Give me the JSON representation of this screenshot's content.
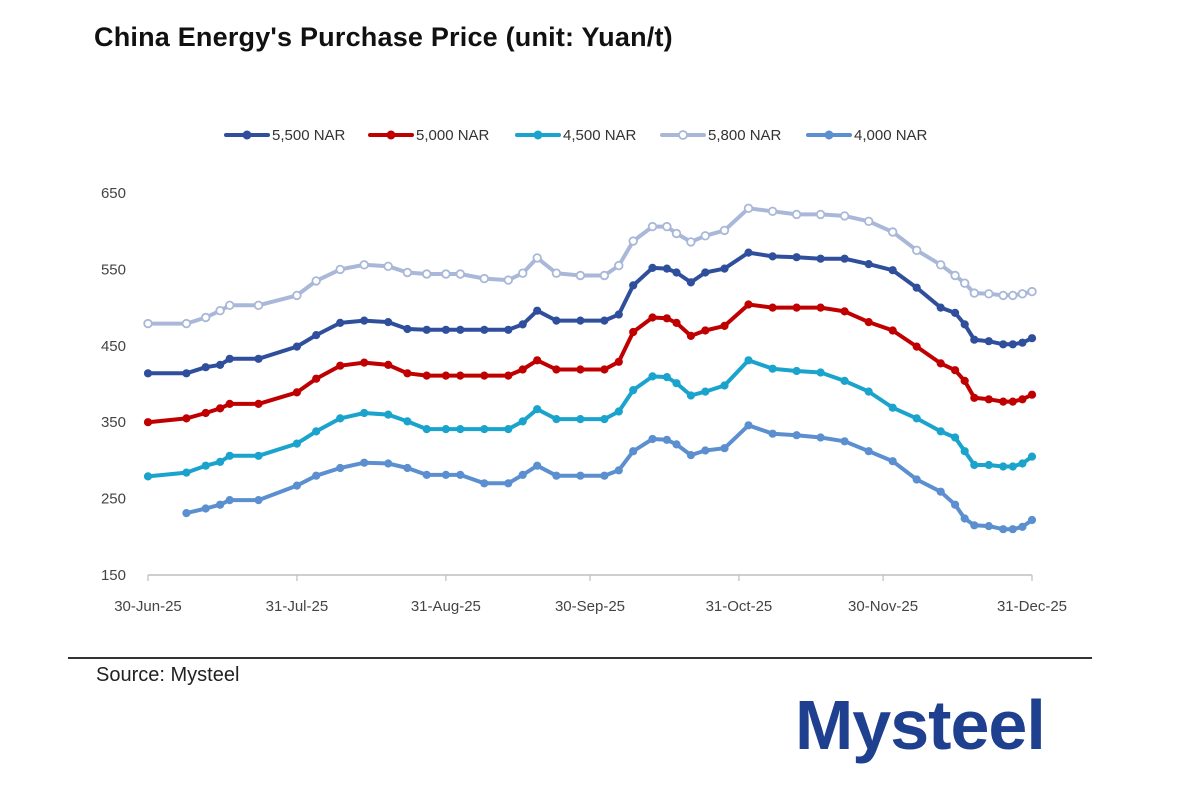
{
  "title": "China Energy's Purchase Price (unit: Yuan/t)",
  "source": "Source: Mysteel",
  "logo_text": "Mysteel",
  "colors": {
    "brand": "#1f3f8f"
  },
  "chart_data": {
    "type": "line",
    "title": "China Energy's Purchase Price (unit: Yuan/t)",
    "xlabel": "",
    "ylabel": "",
    "ylim": [
      150,
      650
    ],
    "yticks": [
      150,
      250,
      350,
      450,
      550,
      650
    ],
    "xlim": [
      0,
      184
    ],
    "xticks": [
      {
        "label": "30-Jun-25",
        "day": 0
      },
      {
        "label": "31-Jul-25",
        "day": 31
      },
      {
        "label": "31-Aug-25",
        "day": 62
      },
      {
        "label": "30-Sep-25",
        "day": 92
      },
      {
        "label": "31-Oct-25",
        "day": 123
      },
      {
        "label": "30-Nov-25",
        "day": 153
      },
      {
        "label": "31-Dec-25",
        "day": 184
      }
    ],
    "grid": false,
    "legend_position": "top",
    "series": [
      {
        "name": "5,500 NAR",
        "color": "#2f4f9c",
        "marker": "filled",
        "x": [
          0,
          8,
          12,
          15,
          17,
          23,
          31,
          35,
          40,
          45,
          50,
          54,
          58,
          62,
          65,
          70,
          75,
          78,
          81,
          85,
          90,
          95,
          98,
          101,
          105,
          108,
          110,
          113,
          116,
          120,
          125,
          130,
          135,
          140,
          145,
          150,
          155,
          160,
          165,
          168,
          170,
          172,
          175,
          178,
          180,
          182,
          184
        ],
        "y": [
          414,
          414,
          422,
          425,
          433,
          433,
          449,
          464,
          480,
          483,
          481,
          472,
          471,
          471,
          471,
          471,
          471,
          478,
          496,
          483,
          483,
          483,
          491,
          529,
          552,
          551,
          546,
          533,
          546,
          551,
          572,
          567,
          566,
          564,
          564,
          557,
          549,
          526,
          500,
          493,
          478,
          458,
          456,
          452,
          452,
          454,
          460
        ]
      },
      {
        "name": "5,000 NAR",
        "color": "#c00000",
        "marker": "filled",
        "x": [
          0,
          8,
          12,
          15,
          17,
          23,
          31,
          35,
          40,
          45,
          50,
          54,
          58,
          62,
          65,
          70,
          75,
          78,
          81,
          85,
          90,
          95,
          98,
          101,
          105,
          108,
          110,
          113,
          116,
          120,
          125,
          130,
          135,
          140,
          145,
          150,
          155,
          160,
          165,
          168,
          170,
          172,
          175,
          178,
          180,
          182,
          184
        ],
        "y": [
          350,
          355,
          362,
          368,
          374,
          374,
          389,
          407,
          424,
          428,
          425,
          414,
          411,
          411,
          411,
          411,
          411,
          419,
          431,
          419,
          419,
          419,
          429,
          468,
          487,
          486,
          480,
          463,
          470,
          476,
          504,
          500,
          500,
          500,
          495,
          481,
          470,
          449,
          427,
          418,
          404,
          382,
          380,
          377,
          377,
          380,
          386
        ]
      },
      {
        "name": "4,500 NAR",
        "color": "#1aa3cc",
        "marker": "filled",
        "x": [
          0,
          8,
          12,
          15,
          17,
          23,
          31,
          35,
          40,
          45,
          50,
          54,
          58,
          62,
          65,
          70,
          75,
          78,
          81,
          85,
          90,
          95,
          98,
          101,
          105,
          108,
          110,
          113,
          116,
          120,
          125,
          130,
          135,
          140,
          145,
          150,
          155,
          160,
          165,
          168,
          170,
          172,
          175,
          178,
          180,
          182,
          184
        ],
        "y": [
          279,
          284,
          293,
          298,
          306,
          306,
          322,
          338,
          355,
          362,
          360,
          351,
          341,
          341,
          341,
          341,
          341,
          351,
          367,
          354,
          354,
          354,
          364,
          392,
          410,
          409,
          401,
          385,
          390,
          398,
          431,
          420,
          417,
          415,
          404,
          390,
          369,
          355,
          338,
          330,
          312,
          294,
          294,
          292,
          292,
          296,
          305
        ]
      },
      {
        "name": "5,800 NAR",
        "color": "#a9b8d9",
        "marker": "hollow",
        "x": [
          0,
          8,
          12,
          15,
          17,
          23,
          31,
          35,
          40,
          45,
          50,
          54,
          58,
          62,
          65,
          70,
          75,
          78,
          81,
          85,
          90,
          95,
          98,
          101,
          105,
          108,
          110,
          113,
          116,
          120,
          125,
          130,
          135,
          140,
          145,
          150,
          155,
          160,
          165,
          168,
          170,
          172,
          175,
          178,
          180,
          182,
          184
        ],
        "y": [
          479,
          479,
          487,
          496,
          503,
          503,
          516,
          535,
          550,
          556,
          554,
          546,
          544,
          544,
          544,
          538,
          536,
          545,
          565,
          545,
          542,
          542,
          555,
          587,
          606,
          606,
          597,
          586,
          594,
          601,
          630,
          626,
          622,
          622,
          620,
          613,
          599,
          575,
          556,
          542,
          532,
          519,
          518,
          516,
          516,
          518,
          521
        ]
      },
      {
        "name": "4,000 NAR",
        "color": "#5b8fcf",
        "marker": "filled-light",
        "x": [
          8,
          12,
          15,
          17,
          23,
          31,
          35,
          40,
          45,
          50,
          54,
          58,
          62,
          65,
          70,
          75,
          78,
          81,
          85,
          90,
          95,
          98,
          101,
          105,
          108,
          110,
          113,
          116,
          120,
          125,
          130,
          135,
          140,
          145,
          150,
          155,
          160,
          165,
          168,
          170,
          172,
          175,
          178,
          180,
          182,
          184
        ],
        "y": [
          231,
          237,
          242,
          248,
          248,
          267,
          280,
          290,
          297,
          296,
          290,
          281,
          281,
          281,
          270,
          270,
          281,
          293,
          280,
          280,
          280,
          287,
          312,
          328,
          327,
          321,
          307,
          313,
          316,
          346,
          335,
          333,
          330,
          325,
          312,
          299,
          275,
          259,
          242,
          224,
          215,
          214,
          210,
          210,
          213,
          222
        ]
      }
    ]
  }
}
